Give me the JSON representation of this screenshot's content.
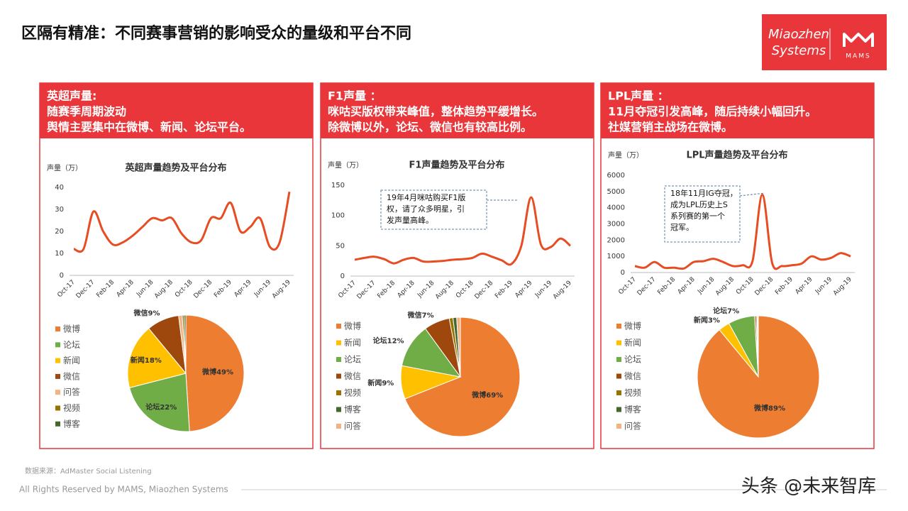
{
  "title": "区隔有精准：不同赛事营销的影响受众的量级和平台不同",
  "logo": {
    "brand": [
      "Miaozhen",
      "Systems"
    ],
    "mark": "MAMS"
  },
  "panels": [
    {
      "heading": "英超声量:",
      "lines": [
        "随赛季周期波动",
        "舆情主要集中在微博、新闻、论坛平台。"
      ]
    },
    {
      "heading": "F1声量 ：",
      "lines": [
        "咪咕买版权带来峰值，整体趋势平缓增长。",
        "除微博以外，论坛、微信也有较高比例。"
      ]
    },
    {
      "heading": "LPL声量 ：",
      "lines": [
        "11月夺冠引发高峰，随后持续小幅回升。",
        "社媒营销主战场在微博。"
      ]
    }
  ],
  "source": "数据来源：AdMaster Social Listening",
  "footer": "All Rights Reserved by MAMS, Miaozhen Systems",
  "watermark": "头条 @未来智库",
  "chart_data": [
    {
      "type": "line",
      "title": "英超声量趋势及平台分布",
      "ylabel": "声量（万）",
      "color": "#e84c22",
      "categories": [
        "Oct-17",
        null,
        "Dec-17",
        null,
        "Feb-18",
        null,
        "Apr-18",
        null,
        "Jun-18",
        null,
        "Aug-18",
        null,
        "Oct-18",
        null,
        "Dec-18",
        null,
        "Feb-19",
        null,
        "Apr-19",
        null,
        "Jun-19",
        null,
        "Aug-19"
      ],
      "values": [
        12,
        12,
        29,
        20,
        14,
        15,
        18,
        22,
        26,
        25,
        26,
        19,
        15,
        16,
        26,
        26,
        33,
        20,
        22,
        26,
        13,
        15,
        38
      ],
      "ylim": [
        0,
        40
      ],
      "yticks": [
        0,
        10,
        20,
        30,
        40
      ]
    },
    {
      "type": "pie",
      "categories": [
        "微博",
        "论坛",
        "新闻",
        "微信",
        "问答",
        "视频",
        "博客"
      ],
      "values": [
        49,
        22,
        18,
        9,
        1,
        0.5,
        0.5
      ],
      "value_labels": [
        "微博49%",
        "论坛22%",
        "新闻18%",
        "微信9%",
        null,
        null,
        null
      ],
      "colors": [
        "#ed7d31",
        "#70ad47",
        "#ffc000",
        "#9e480e",
        "#f4b183",
        "#997300",
        "#43682b"
      ]
    },
    {
      "type": "line",
      "title": "F1声量趋势及平台分布",
      "ylabel": "声量（万）",
      "color": "#e84c22",
      "categories": [
        "Oct-17",
        null,
        "Dec-17",
        null,
        "Feb-18",
        null,
        "Apr-18",
        null,
        "Jun-18",
        null,
        "Aug-18",
        null,
        "Oct-18",
        null,
        "Dec-18",
        null,
        "Feb-19",
        null,
        "Apr-19",
        null,
        "Jun-19",
        null,
        "Aug-19"
      ],
      "values": [
        27,
        30,
        32,
        28,
        21,
        27,
        30,
        24,
        24,
        25,
        27,
        28,
        30,
        37,
        32,
        26,
        20,
        50,
        130,
        52,
        48,
        62,
        50
      ],
      "ylim": [
        0,
        150
      ],
      "yticks": [
        0,
        50,
        100,
        150
      ],
      "annotation": [
        "19年4月咪咕购买F1版",
        "权，请了众多明星，引",
        "发声量高峰。"
      ]
    },
    {
      "type": "pie",
      "categories": [
        "微博",
        "新闻",
        "论坛",
        "微信",
        "视频",
        "博客",
        "问答"
      ],
      "values": [
        69,
        9,
        12,
        7,
        1,
        1,
        1
      ],
      "value_labels": [
        "微博69%",
        "新闻9%",
        "论坛12%",
        "微信7%",
        null,
        null,
        null
      ],
      "colors": [
        "#ed7d31",
        "#ffc000",
        "#70ad47",
        "#9e480e",
        "#997300",
        "#43682b",
        "#f4b183"
      ]
    },
    {
      "type": "line",
      "title": "LPL声量趋势及平台分布",
      "ylabel": "声量（万）",
      "color": "#e84c22",
      "categories": [
        "Oct-17",
        null,
        "Dec-17",
        null,
        "Feb-18",
        null,
        "Apr-18",
        null,
        "Jun-18",
        null,
        "Aug-18",
        null,
        "Oct-18",
        null,
        "Dec-18",
        null,
        "Feb-19",
        null,
        "Apr-19",
        null,
        "Jun-19",
        null,
        "Aug-19"
      ],
      "values": [
        400,
        300,
        650,
        300,
        300,
        250,
        650,
        700,
        850,
        650,
        400,
        450,
        700,
        4800,
        600,
        400,
        450,
        550,
        1000,
        800,
        900,
        1200,
        1000
      ],
      "ylim": [
        0,
        6000
      ],
      "yticks": [
        0,
        1000,
        2000,
        3000,
        4000,
        5000,
        6000
      ],
      "annotation": [
        "18年11月IG夺冠，",
        "成为LPL历史上S",
        "系列赛的第一个",
        "冠军。"
      ]
    },
    {
      "type": "pie",
      "categories": [
        "微博",
        "新闻",
        "论坛",
        "微信",
        "视频",
        "博客",
        "问答"
      ],
      "values": [
        89,
        3,
        7,
        0.4,
        0.3,
        0.2,
        0.1
      ],
      "value_labels": [
        "微博89%",
        "新闻3%",
        "论坛7%",
        null,
        null,
        null,
        null
      ],
      "colors": [
        "#ed7d31",
        "#ffc000",
        "#70ad47",
        "#9e480e",
        "#997300",
        "#43682b",
        "#f4b183"
      ]
    }
  ]
}
